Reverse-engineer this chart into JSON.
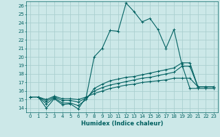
{
  "xlabel": "Humidex (Indice chaleur)",
  "xlim": [
    -0.5,
    23.5
  ],
  "ylim": [
    13.5,
    26.5
  ],
  "yticks": [
    14,
    15,
    16,
    17,
    18,
    19,
    20,
    21,
    22,
    23,
    24,
    25,
    26
  ],
  "xticks": [
    0,
    1,
    2,
    3,
    4,
    5,
    6,
    7,
    8,
    9,
    10,
    11,
    12,
    13,
    14,
    15,
    16,
    17,
    18,
    19,
    20,
    21,
    22,
    23
  ],
  "bg_color": "#cce8e8",
  "grid_color": "#aacfcf",
  "line_color": "#006060",
  "lines": [
    {
      "x": [
        0,
        1,
        2,
        3,
        4,
        5,
        6,
        7,
        8,
        9,
        10,
        11,
        12,
        13,
        14,
        15,
        16,
        17,
        18,
        19,
        20,
        21,
        22,
        23
      ],
      "y": [
        15.3,
        15.3,
        14.0,
        15.1,
        14.4,
        14.5,
        13.9,
        15.3,
        20.0,
        21.0,
        23.1,
        23.0,
        26.3,
        25.3,
        24.1,
        24.5,
        23.2,
        21.0,
        23.2,
        19.1,
        16.3,
        16.3,
        16.3,
        16.3
      ]
    },
    {
      "x": [
        0,
        1,
        2,
        3,
        4,
        5,
        6,
        7,
        8,
        9,
        10,
        11,
        12,
        13,
        14,
        15,
        16,
        17,
        18,
        19,
        20,
        21,
        22,
        23
      ],
      "y": [
        15.3,
        15.3,
        14.5,
        15.2,
        14.6,
        14.6,
        14.3,
        15.0,
        16.3,
        16.8,
        17.2,
        17.4,
        17.6,
        17.7,
        17.9,
        18.1,
        18.3,
        18.5,
        18.7,
        19.3,
        19.3,
        16.5,
        16.5,
        16.5
      ]
    },
    {
      "x": [
        0,
        1,
        2,
        3,
        4,
        5,
        6,
        7,
        8,
        9,
        10,
        11,
        12,
        13,
        14,
        15,
        16,
        17,
        18,
        19,
        20,
        21,
        22,
        23
      ],
      "y": [
        15.3,
        15.3,
        14.8,
        15.3,
        14.9,
        14.9,
        14.7,
        15.2,
        16.0,
        16.4,
        16.7,
        16.9,
        17.1,
        17.3,
        17.5,
        17.6,
        17.8,
        18.0,
        18.2,
        18.9,
        18.9,
        16.5,
        16.5,
        16.5
      ]
    },
    {
      "x": [
        0,
        1,
        2,
        3,
        4,
        5,
        6,
        7,
        8,
        9,
        10,
        11,
        12,
        13,
        14,
        15,
        16,
        17,
        18,
        19,
        20,
        21,
        22,
        23
      ],
      "y": [
        15.3,
        15.3,
        15.0,
        15.4,
        15.1,
        15.1,
        15.0,
        15.3,
        15.7,
        16.0,
        16.3,
        16.5,
        16.7,
        16.8,
        17.0,
        17.1,
        17.2,
        17.3,
        17.5,
        17.5,
        17.5,
        16.5,
        16.5,
        16.5
      ]
    }
  ]
}
